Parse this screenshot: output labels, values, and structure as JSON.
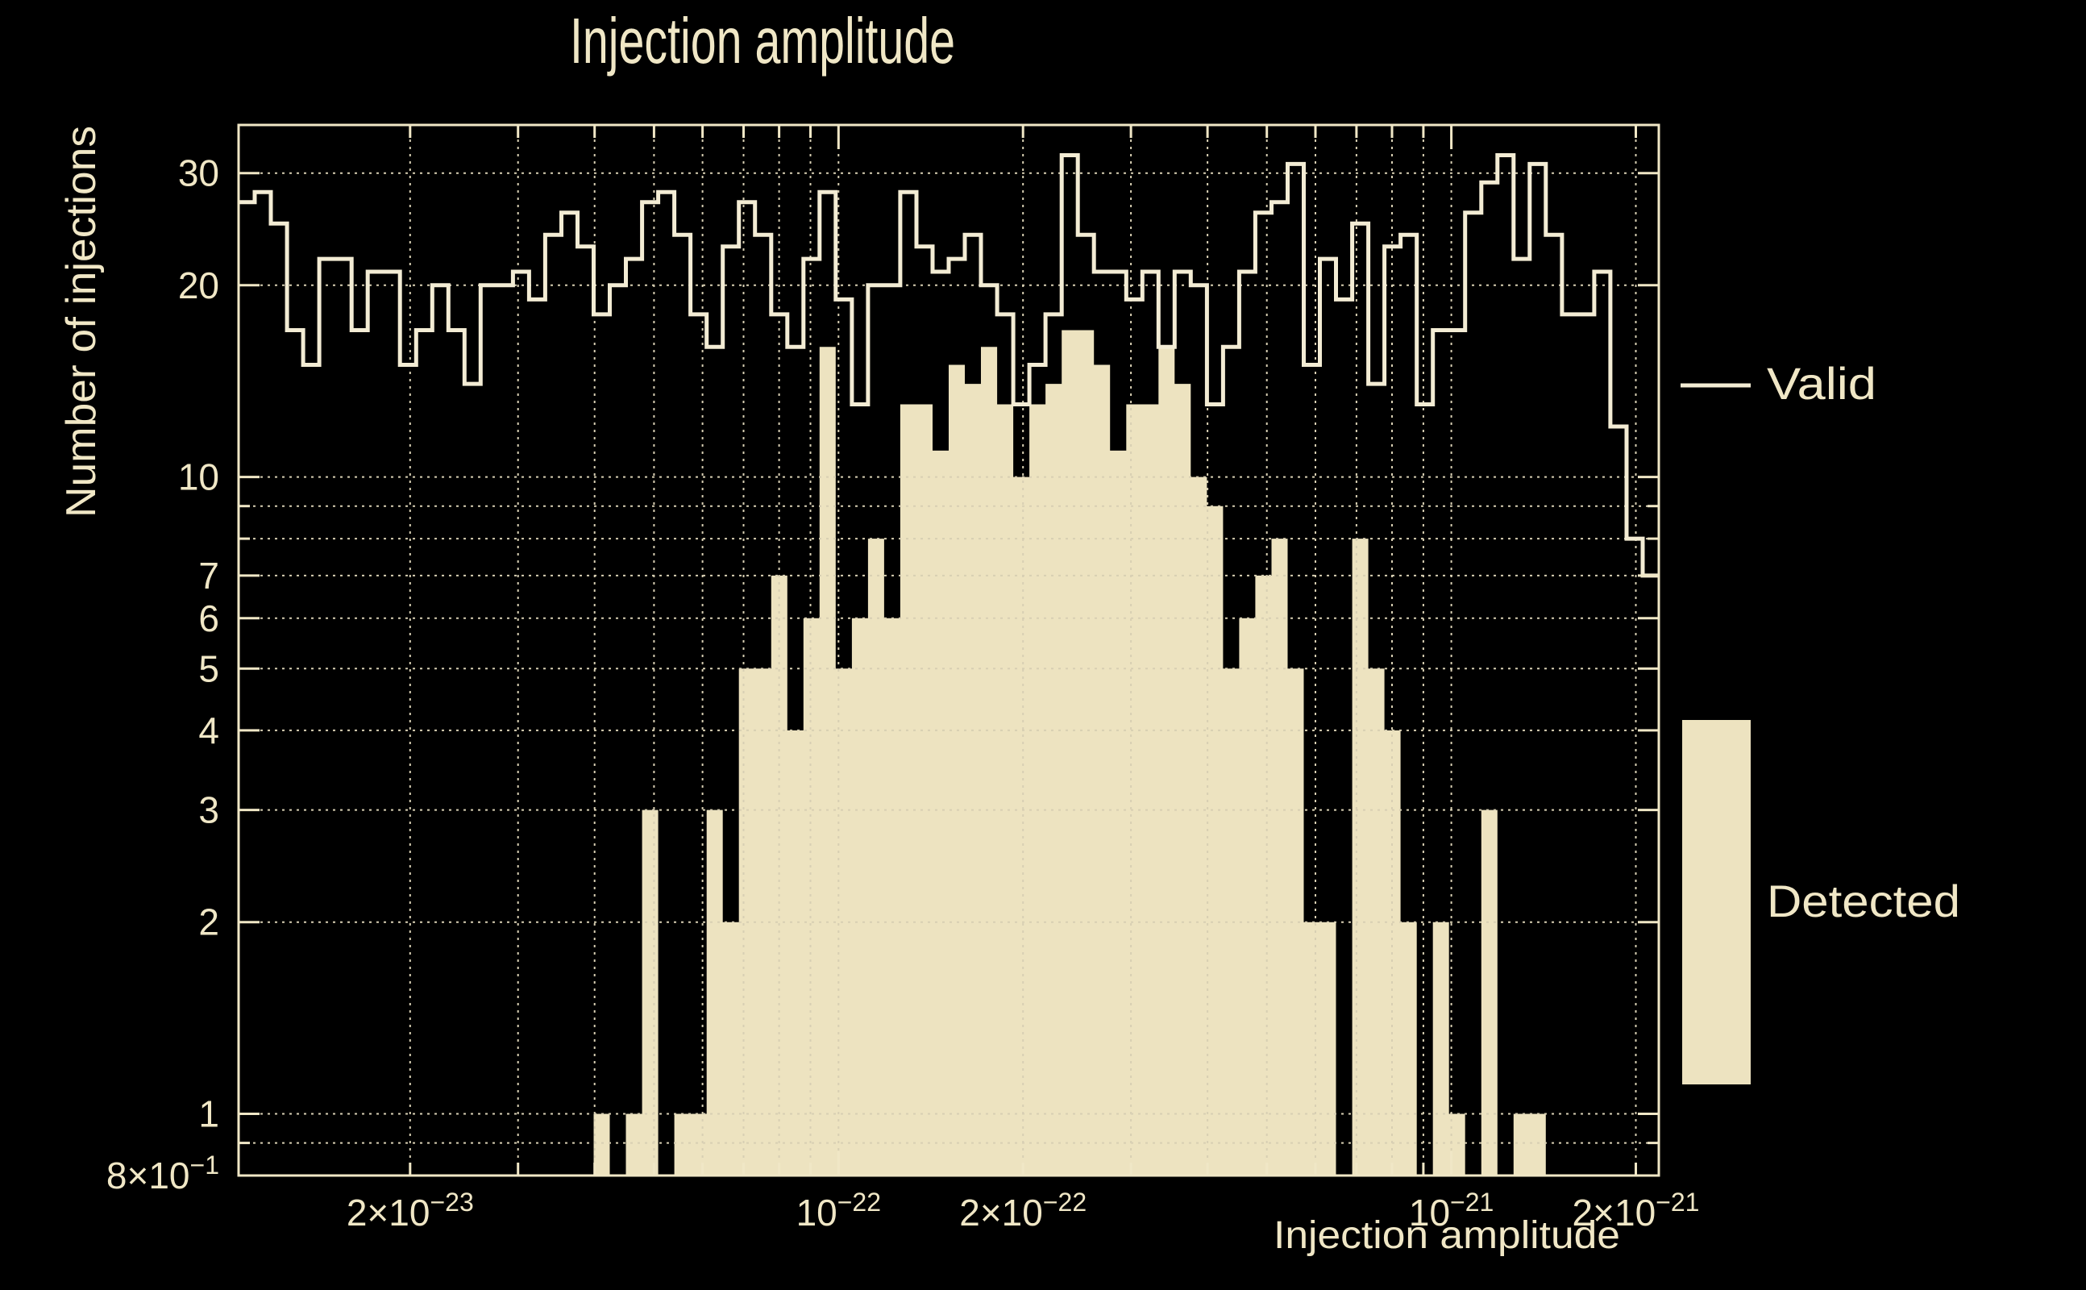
{
  "title": "Injection amplitude",
  "axes": {
    "x_title": "Injection amplitude",
    "y_title": "Number of injections"
  },
  "legend": {
    "valid_label": "Valid",
    "detected_label": "Detected"
  },
  "colors": {
    "background": "#000000",
    "detected_fill": "#ede3c0",
    "valid_line": "#f3ecd4",
    "text": "#f0e7c6",
    "grid": "#d8cfb3",
    "frame": "#f0e7c6"
  },
  "chart_data": {
    "type": "histogram",
    "subtype": "two-series: outlined step line (Valid) + filled bars (Detected)",
    "title": "Injection amplitude",
    "xlabel": "Injection amplitude",
    "ylabel": "Number of injections",
    "x_scale": "log",
    "y_scale": "log",
    "x_min": 1.05e-23,
    "x_max": 2.18e-21,
    "y_min": 0.8,
    "y_max": 35.7,
    "n_bins": 88,
    "grid": true,
    "legend_position": "right",
    "series": [
      {
        "name": "Valid",
        "style": "step-outline",
        "values": [
          27,
          28,
          25,
          17,
          15,
          22,
          22,
          17,
          21,
          21,
          15,
          17,
          20,
          17,
          14,
          20,
          20,
          21,
          19,
          24,
          26,
          23,
          18,
          20,
          22,
          27,
          28,
          24,
          18,
          16,
          23,
          27,
          24,
          18,
          16,
          22,
          28,
          19,
          13,
          20,
          20,
          28,
          23,
          21,
          22,
          24,
          20,
          18,
          13,
          15,
          18,
          32,
          24,
          21,
          21,
          19,
          21,
          16,
          21,
          20,
          13,
          16,
          21,
          26,
          27,
          31,
          15,
          22,
          19,
          25,
          14,
          23,
          24,
          13,
          17,
          17,
          26,
          29,
          32,
          22,
          31,
          24,
          18,
          18,
          21,
          12,
          8,
          7
        ]
      },
      {
        "name": "Detected",
        "style": "filled",
        "values": [
          0,
          0,
          0,
          0,
          0,
          0,
          0,
          0,
          0,
          0,
          0,
          0,
          0,
          0,
          0,
          0,
          0,
          0,
          0,
          0,
          0,
          0,
          1,
          0,
          1,
          3,
          0,
          1,
          1,
          3,
          2,
          5,
          5,
          7,
          4,
          6,
          16,
          5,
          6,
          8,
          6,
          13,
          13,
          11,
          15,
          14,
          16,
          13,
          10,
          13,
          14,
          17,
          17,
          15,
          11,
          13,
          13,
          16,
          14,
          10,
          9,
          5,
          6,
          7,
          8,
          5,
          2,
          2,
          0,
          8,
          5,
          4,
          2,
          0,
          2,
          1,
          0,
          3,
          0,
          1,
          1,
          0,
          0,
          0,
          0,
          0,
          0,
          0
        ]
      }
    ],
    "x_major_ticks": [
      {
        "value": 2e-23,
        "base": "2×10",
        "exp": "−23"
      },
      {
        "value": 1e-22,
        "base": "10",
        "exp": "−22"
      },
      {
        "value": 2e-22,
        "base": "2×10",
        "exp": "−22"
      },
      {
        "value": 1e-21,
        "base": "10",
        "exp": "−21"
      },
      {
        "value": 2e-21,
        "base": "2×10",
        "exp": "−21"
      }
    ],
    "x_decades": [
      1e-22,
      1e-21
    ],
    "x_grid_values": [
      2e-23,
      3e-23,
      4e-23,
      5e-23,
      6e-23,
      7e-23,
      8e-23,
      9e-23,
      1e-22,
      2e-22,
      3e-22,
      4e-22,
      5e-22,
      6e-22,
      7e-22,
      8e-22,
      9e-22,
      1e-21,
      2e-21
    ],
    "y_labeled_ticks": [
      {
        "value": 30,
        "label": "30"
      },
      {
        "value": 20,
        "label": "20"
      },
      {
        "value": 10,
        "label": "10"
      },
      {
        "value": 7,
        "label": "7"
      },
      {
        "value": 6,
        "label": "6"
      },
      {
        "value": 5,
        "label": "5"
      },
      {
        "value": 4,
        "label": "4"
      },
      {
        "value": 3,
        "label": "3"
      },
      {
        "value": 2,
        "label": "2"
      },
      {
        "value": 1,
        "label": "1"
      }
    ],
    "y_bottom_label": {
      "value": 0.8,
      "base": "8×10",
      "exp": "−1"
    },
    "y_minor_ticks": [
      9,
      8,
      0.9
    ],
    "y_grid_values": [
      0.9,
      1,
      2,
      3,
      4,
      5,
      6,
      7,
      8,
      9,
      10,
      20,
      30
    ]
  }
}
